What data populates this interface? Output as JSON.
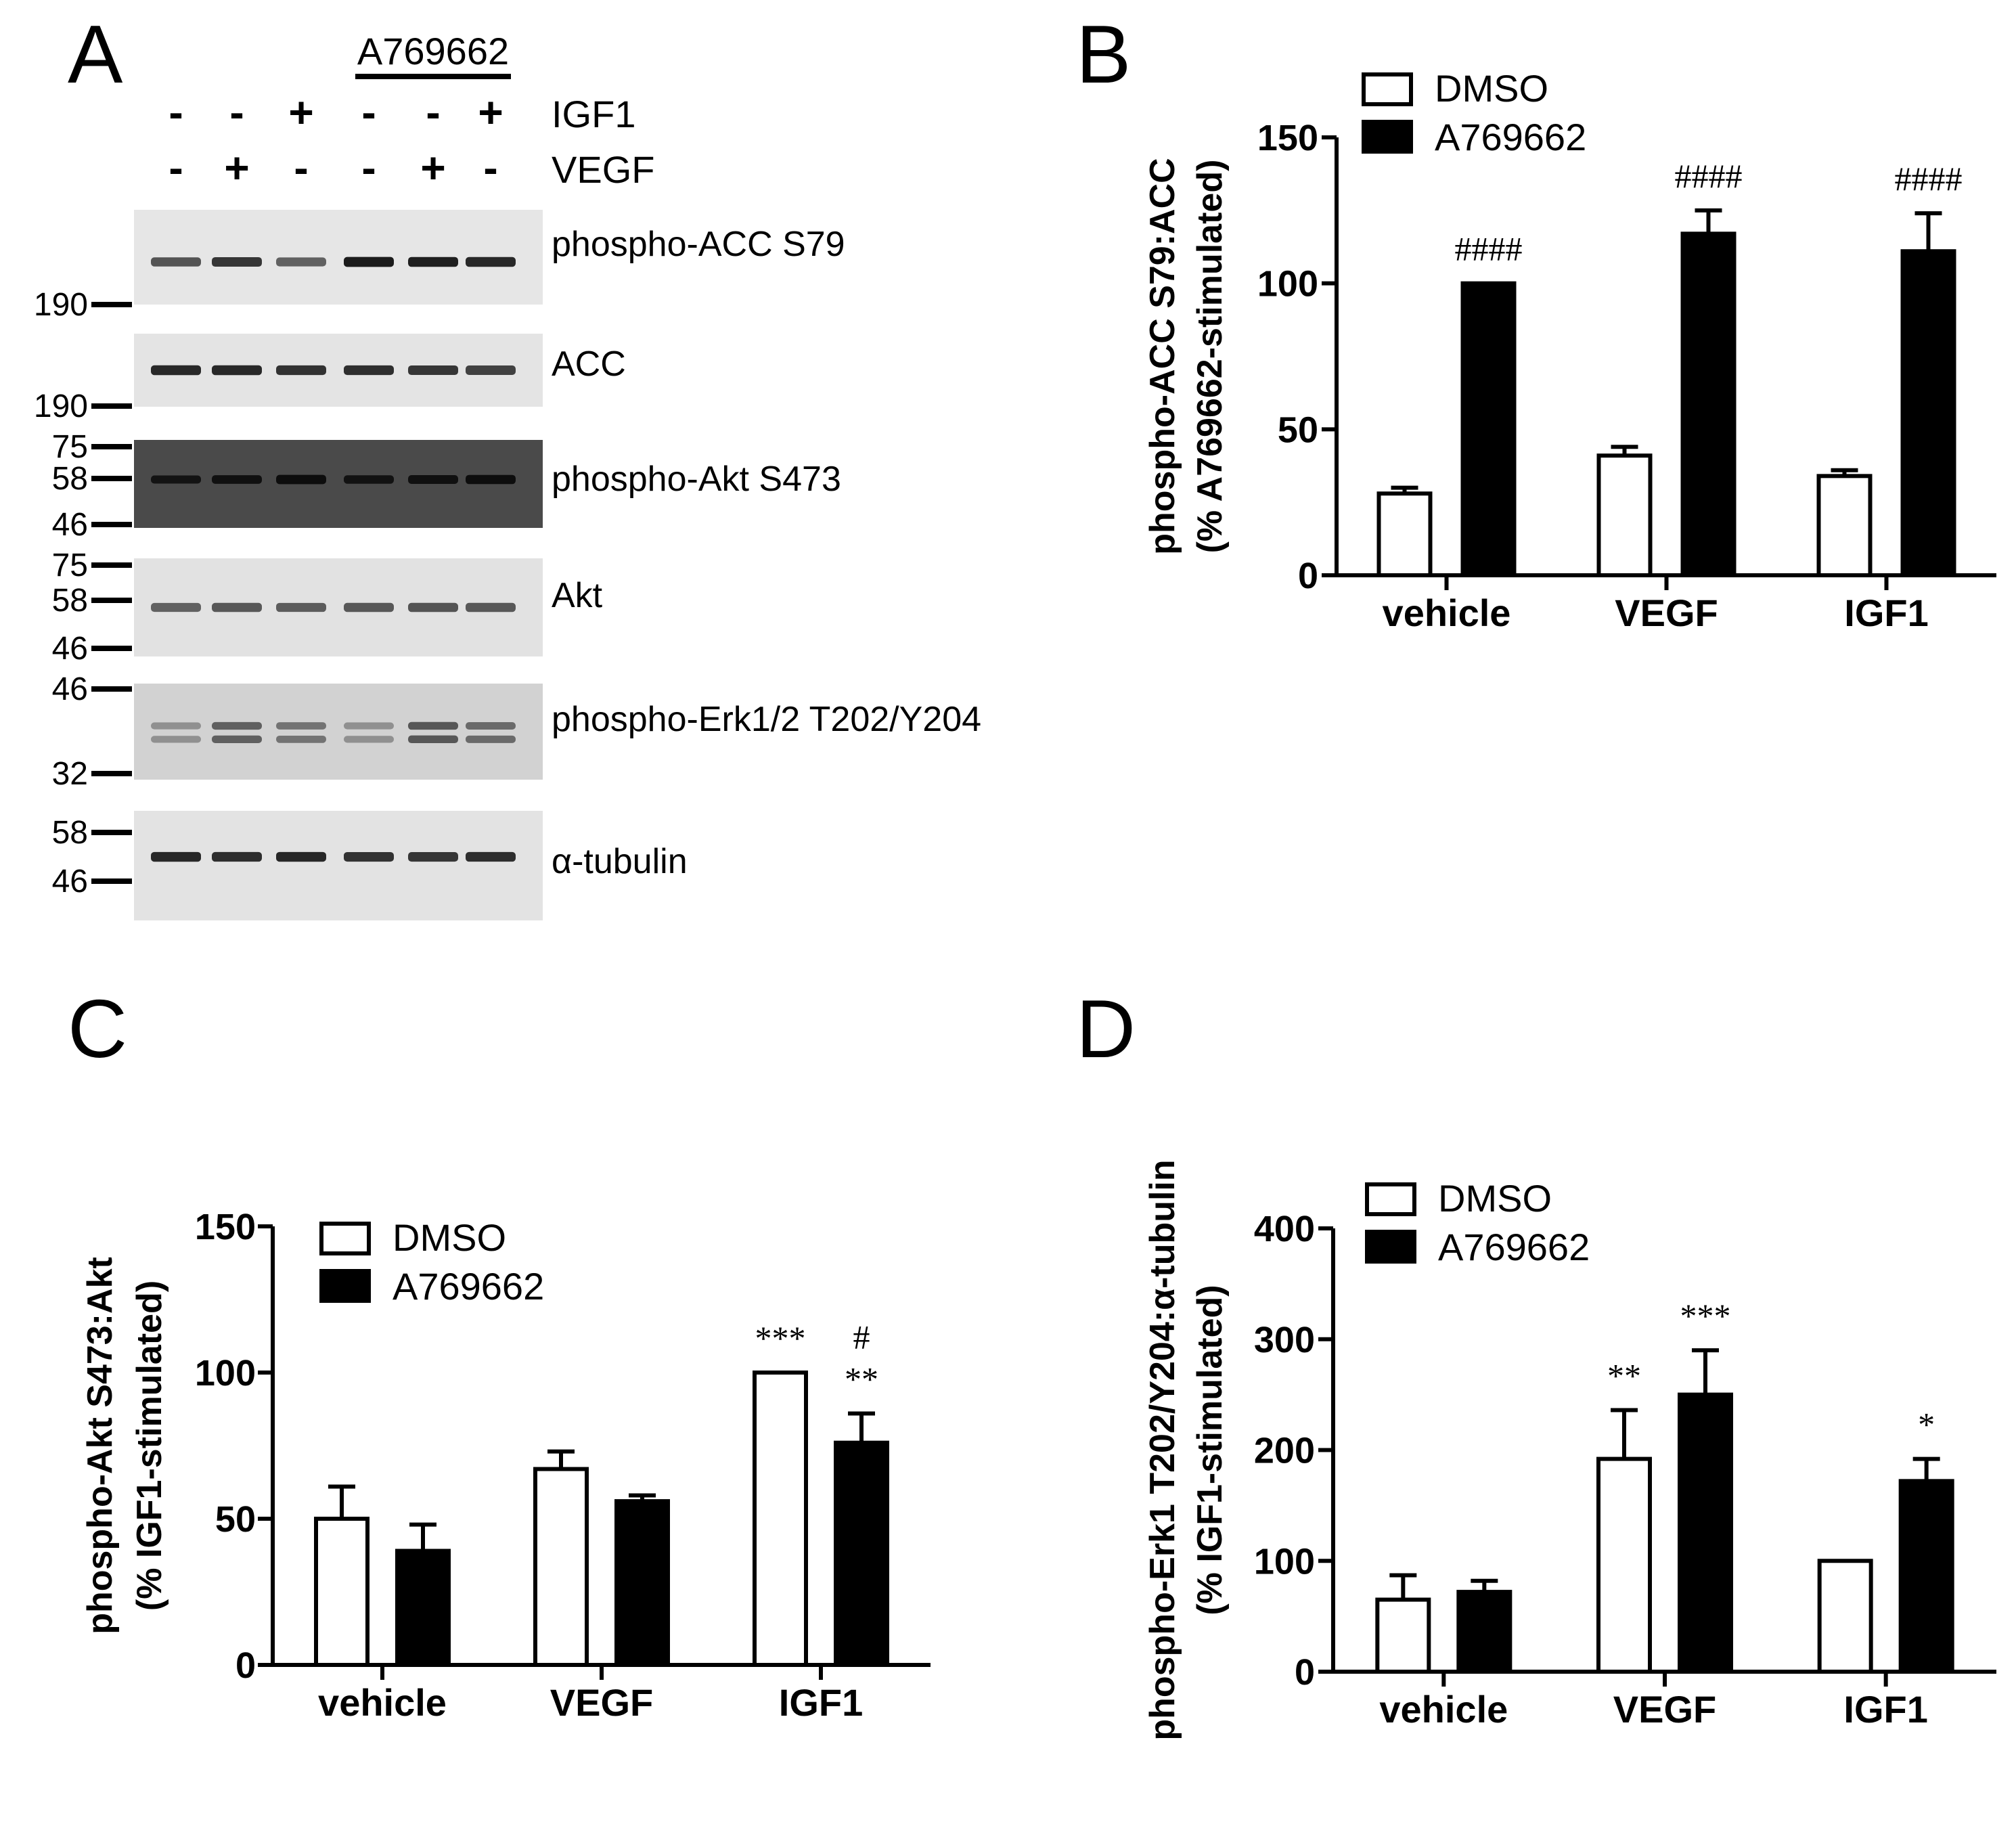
{
  "panel_a": {
    "letter": "A",
    "drug_label": "A769662",
    "rows": [
      {
        "name": "IGF1",
        "signs": [
          "-",
          "-",
          "+",
          "-",
          "-",
          "+"
        ]
      },
      {
        "name": "VEGF",
        "signs": [
          "-",
          "+",
          "-",
          "-",
          "+",
          "-"
        ]
      }
    ],
    "blots": [
      {
        "label": "phospho-ACC S79",
        "markers": [
          "190"
        ],
        "background": "#e6e6e6",
        "bands": [
          0.62,
          0.78,
          0.55,
          0.92,
          0.9,
          0.85
        ]
      },
      {
        "label": "ACC",
        "markers": [
          "190"
        ],
        "background": "#e4e4e4",
        "bands": [
          0.85,
          0.85,
          0.8,
          0.82,
          0.78,
          0.72
        ]
      },
      {
        "label": "phospho-Akt S473",
        "markers": [
          "75",
          "58",
          "46"
        ],
        "background": "#4a4a4a",
        "bands": [
          0.25,
          0.45,
          0.7,
          0.35,
          0.5,
          0.65
        ]
      },
      {
        "label": "Akt",
        "markers": [
          "75",
          "58",
          "46"
        ],
        "background": "#e2e2e2",
        "bands": [
          0.55,
          0.6,
          0.58,
          0.6,
          0.62,
          0.6
        ]
      },
      {
        "label": "phospho-Erk1/2 T202/Y204",
        "markers": [
          "46",
          "32"
        ],
        "background": "#d2d2d2",
        "bands": [
          0.3,
          0.55,
          0.45,
          0.3,
          0.6,
          0.5
        ]
      },
      {
        "label": "α-tubulin",
        "markers": [
          "58",
          "46"
        ],
        "background": "#e3e3e3",
        "bands": [
          0.85,
          0.82,
          0.86,
          0.8,
          0.78,
          0.82
        ]
      }
    ]
  },
  "legend": {
    "dmso": "DMSO",
    "drug": "A769662"
  },
  "chart_data": [
    {
      "panel": "B",
      "type": "bar",
      "title": "",
      "ylabel_line1": "phospho-ACC S79:ACC",
      "ylabel_line2": "(% A769662-stimulated)",
      "categories": [
        "vehicle",
        "VEGF",
        "IGF1"
      ],
      "ylim": [
        0,
        150
      ],
      "yticks": [
        0,
        50,
        100,
        150
      ],
      "series": [
        {
          "name": "DMSO",
          "values": [
            28,
            41,
            34
          ],
          "errors": [
            2,
            3,
            2
          ],
          "annotations": [
            "",
            "",
            ""
          ]
        },
        {
          "name": "A769662",
          "values": [
            100,
            117,
            111
          ],
          "errors": [
            0,
            8,
            13
          ],
          "annotations": [
            "####",
            "####",
            "####"
          ]
        }
      ]
    },
    {
      "panel": "C",
      "type": "bar",
      "title": "",
      "ylabel_line1": "phospho-Akt S473:Akt",
      "ylabel_line2": "(% IGF1-stimulated)",
      "categories": [
        "vehicle",
        "VEGF",
        "IGF1"
      ],
      "ylim": [
        0,
        150
      ],
      "yticks": [
        0,
        50,
        100,
        150
      ],
      "series": [
        {
          "name": "DMSO",
          "values": [
            50,
            67,
            100
          ],
          "errors": [
            11,
            6,
            0
          ],
          "annotations": [
            "",
            "",
            "***"
          ]
        },
        {
          "name": "A769662",
          "values": [
            39,
            56,
            76
          ],
          "errors": [
            9,
            2,
            10
          ],
          "annotations": [
            "",
            "",
            "**"
          ],
          "annotations_top": [
            "",
            "",
            "#"
          ]
        }
      ]
    },
    {
      "panel": "D",
      "type": "bar",
      "title": "",
      "ylabel_line1": "phospho-Erk1 T202/Y204:α-tubulin",
      "ylabel_line2": "(% IGF1-stimulated)",
      "categories": [
        "vehicle",
        "VEGF",
        "IGF1"
      ],
      "ylim": [
        0,
        400
      ],
      "yticks": [
        0,
        100,
        200,
        300,
        400
      ],
      "series": [
        {
          "name": "DMSO",
          "values": [
            65,
            192,
            100
          ],
          "errors": [
            22,
            44,
            0
          ],
          "annotations": [
            "",
            "**",
            ""
          ]
        },
        {
          "name": "A769662",
          "values": [
            72,
            250,
            172
          ],
          "errors": [
            10,
            40,
            20
          ],
          "annotations": [
            "",
            "***",
            "*"
          ]
        }
      ]
    }
  ]
}
